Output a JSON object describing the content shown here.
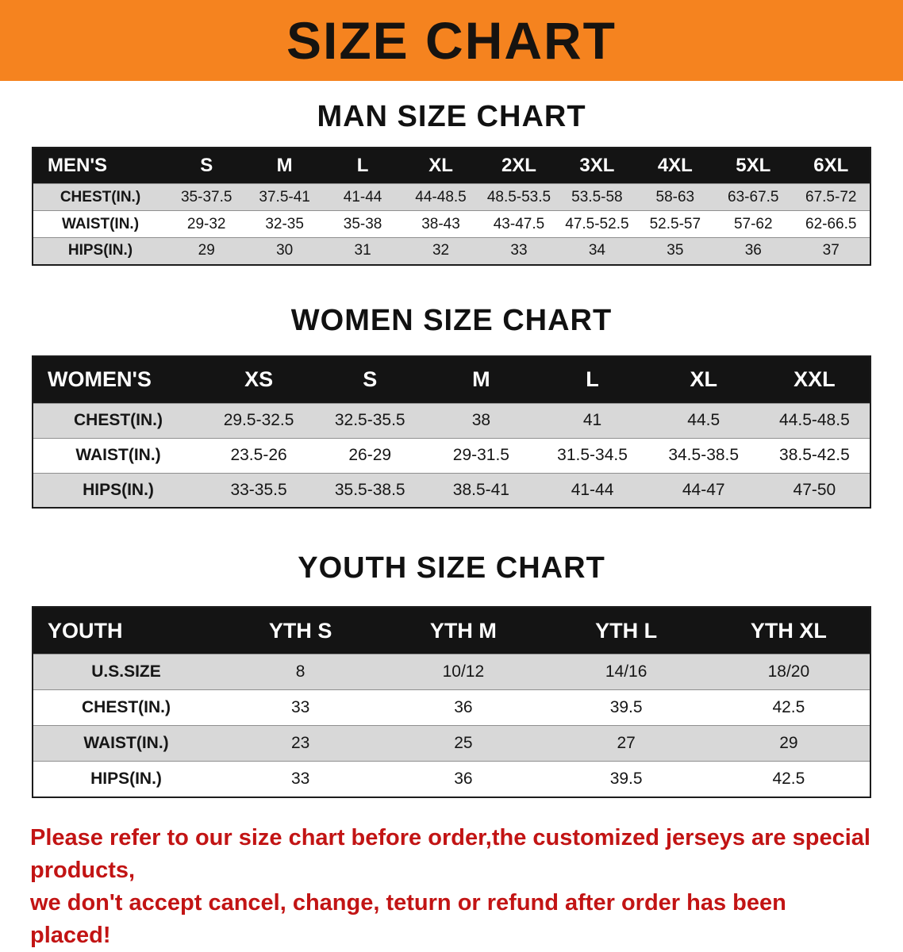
{
  "banner": {
    "title": "SIZE CHART",
    "bg_color": "#F5831F"
  },
  "colors": {
    "table_header_bg": "#141414",
    "row_stripe": "#D8D8D8",
    "note_text": "#C21414"
  },
  "sections": [
    {
      "heading": "MAN SIZE CHART",
      "table": {
        "header": [
          "MEN'S",
          "S",
          "M",
          "L",
          "XL",
          "2XL",
          "3XL",
          "4XL",
          "5XL",
          "6XL"
        ],
        "rows": [
          {
            "label": "CHEST(IN.)",
            "values": [
              "35-37.5",
              "37.5-41",
              "41-44",
              "44-48.5",
              "48.5-53.5",
              "53.5-58",
              "58-63",
              "63-67.5",
              "67.5-72"
            ]
          },
          {
            "label": "WAIST(IN.)",
            "values": [
              "29-32",
              "32-35",
              "35-38",
              "38-43",
              "43-47.5",
              "47.5-52.5",
              "52.5-57",
              "57-62",
              "62-66.5"
            ]
          },
          {
            "label": "HIPS(IN.)",
            "values": [
              "29",
              "30",
              "31",
              "32",
              "33",
              "34",
              "35",
              "36",
              "37"
            ]
          }
        ]
      }
    },
    {
      "heading": "WOMEN SIZE CHART",
      "table": {
        "header": [
          "WOMEN'S",
          "XS",
          "S",
          "M",
          "L",
          "XL",
          "XXL"
        ],
        "rows": [
          {
            "label": "CHEST(IN.)",
            "values": [
              "29.5-32.5",
              "32.5-35.5",
              "38",
              "41",
              "44.5",
              "44.5-48.5"
            ]
          },
          {
            "label": "WAIST(IN.)",
            "values": [
              "23.5-26",
              "26-29",
              "29-31.5",
              "31.5-34.5",
              "34.5-38.5",
              "38.5-42.5"
            ]
          },
          {
            "label": "HIPS(IN.)",
            "values": [
              "33-35.5",
              "35.5-38.5",
              "38.5-41",
              "41-44",
              "44-47",
              "47-50"
            ]
          }
        ]
      }
    },
    {
      "heading": "YOUTH SIZE CHART",
      "table": {
        "header": [
          "YOUTH",
          "YTH S",
          "YTH M",
          "YTH L",
          "YTH XL"
        ],
        "rows": [
          {
            "label": "U.S.SIZE",
            "values": [
              "8",
              "10/12",
              "14/16",
              "18/20"
            ]
          },
          {
            "label": "CHEST(IN.)",
            "values": [
              "33",
              "36",
              "39.5",
              "42.5"
            ]
          },
          {
            "label": "WAIST(IN.)",
            "values": [
              "23",
              "25",
              "27",
              "29"
            ]
          },
          {
            "label": "HIPS(IN.)",
            "values": [
              "33",
              "36",
              "39.5",
              "42.5"
            ]
          }
        ]
      }
    }
  ],
  "note": {
    "line1": "Please refer to our size chart before order,the customized jerseys are special products,",
    "line2": "we don't accept cancel, change, teturn or refund after order has been placed!"
  }
}
